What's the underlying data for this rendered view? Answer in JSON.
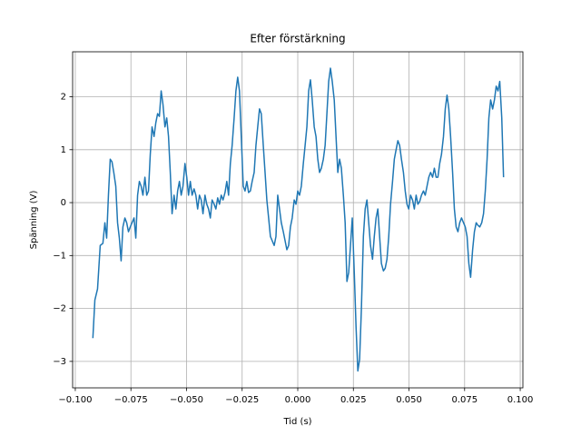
{
  "chart_data": {
    "type": "line",
    "title": "Efter förstärkning",
    "xlabel": "Tid (s)",
    "ylabel": "Spänning (V)",
    "color": "#1f77b4",
    "grid": true,
    "xlim": [
      -0.1012,
      0.1012
    ],
    "ylim": [
      -3.5,
      2.85
    ],
    "xticks": [
      {
        "value": -0.1,
        "label": "−0.100"
      },
      {
        "value": -0.075,
        "label": "−0.075"
      },
      {
        "value": -0.05,
        "label": "−0.050"
      },
      {
        "value": -0.025,
        "label": "−0.025"
      },
      {
        "value": 0,
        "label": "0.000"
      },
      {
        "value": 0.025,
        "label": "0.025"
      },
      {
        "value": 0.05,
        "label": "0.050"
      },
      {
        "value": 0.075,
        "label": "0.075"
      },
      {
        "value": 0.1,
        "label": "0.100"
      }
    ],
    "yticks": [
      {
        "value": -3,
        "label": "−3"
      },
      {
        "value": -2,
        "label": "−2"
      },
      {
        "value": -1,
        "label": "−1"
      },
      0,
      1,
      2
    ],
    "x": [
      -0.0921,
      -0.0912,
      -0.09,
      -0.0888,
      -0.0876,
      -0.0867,
      -0.0859,
      -0.0851,
      -0.0843,
      -0.0835,
      -0.0827,
      -0.0818,
      -0.081,
      -0.0802,
      -0.0794,
      -0.0786,
      -0.0777,
      -0.0769,
      -0.0761,
      -0.0753,
      -0.0745,
      -0.0736,
      -0.0728,
      -0.072,
      -0.0712,
      -0.0704,
      -0.0696,
      -0.0687,
      -0.0679,
      -0.0671,
      -0.0663,
      -0.0655,
      -0.0646,
      -0.0638,
      -0.063,
      -0.0622,
      -0.0614,
      -0.0606,
      -0.0597,
      -0.0589,
      -0.0581,
      -0.0573,
      -0.0565,
      -0.0556,
      -0.0548,
      -0.054,
      -0.0532,
      -0.0524,
      -0.0516,
      -0.0507,
      -0.0499,
      -0.0491,
      -0.0483,
      -0.0475,
      -0.0466,
      -0.0458,
      -0.045,
      -0.0442,
      -0.0434,
      -0.0426,
      -0.0417,
      -0.0409,
      -0.0401,
      -0.0393,
      -0.0385,
      -0.0376,
      -0.0368,
      -0.036,
      -0.0352,
      -0.0344,
      -0.0336,
      -0.0327,
      -0.0319,
      -0.0311,
      -0.0303,
      -0.0295,
      -0.0286,
      -0.0278,
      -0.027,
      -0.0262,
      -0.0254,
      -0.0245,
      -0.0237,
      -0.0229,
      -0.0221,
      -0.0213,
      -0.0205,
      -0.0196,
      -0.0188,
      -0.018,
      -0.0172,
      -0.0164,
      -0.0155,
      -0.0147,
      -0.0139,
      -0.0131,
      -0.0123,
      -0.0115,
      -0.0106,
      -0.0098,
      -0.009,
      -0.0082,
      -0.0074,
      -0.0065,
      -0.0057,
      -0.0049,
      -0.0041,
      -0.0033,
      -0.0025,
      -0.0016,
      -0.0008,
      0.0,
      0.0008,
      0.0016,
      0.0025,
      0.0033,
      0.0041,
      0.0049,
      0.0057,
      0.0065,
      0.0074,
      0.0082,
      0.009,
      0.0098,
      0.0106,
      0.0115,
      0.0123,
      0.0131,
      0.0139,
      0.0147,
      0.0155,
      0.0164,
      0.0172,
      0.018,
      0.0188,
      0.0196,
      0.0205,
      0.0213,
      0.0221,
      0.0229,
      0.0237,
      0.0245,
      0.0254,
      0.0262,
      0.027,
      0.0278,
      0.0286,
      0.0295,
      0.0303,
      0.0311,
      0.0319,
      0.0327,
      0.0336,
      0.0344,
      0.0352,
      0.036,
      0.0368,
      0.0376,
      0.0385,
      0.0393,
      0.0401,
      0.0409,
      0.0417,
      0.0426,
      0.0434,
      0.0442,
      0.045,
      0.0458,
      0.0466,
      0.0475,
      0.0483,
      0.0491,
      0.0499,
      0.0507,
      0.0516,
      0.0524,
      0.0532,
      0.054,
      0.0548,
      0.0556,
      0.0565,
      0.0573,
      0.0581,
      0.0589,
      0.0597,
      0.0606,
      0.0614,
      0.0622,
      0.063,
      0.0638,
      0.0646,
      0.0655,
      0.0663,
      0.0671,
      0.0679,
      0.0687,
      0.0696,
      0.0704,
      0.0712,
      0.072,
      0.0728,
      0.0736,
      0.0745,
      0.0753,
      0.0761,
      0.0769,
      0.0777,
      0.0786,
      0.0794,
      0.0802,
      0.081,
      0.0818,
      0.0827,
      0.0835,
      0.0843,
      0.0851,
      0.0859,
      0.0867,
      0.0876,
      0.0884,
      0.0892,
      0.09,
      0.0908,
      0.0917,
      0.0925
    ],
    "values": [
      -2.56,
      -1.84,
      -1.63,
      -0.81,
      -0.77,
      -0.38,
      -0.67,
      0.14,
      0.82,
      0.77,
      0.57,
      0.31,
      -0.38,
      -0.67,
      -1.1,
      -0.46,
      -0.29,
      -0.38,
      -0.55,
      -0.46,
      -0.38,
      -0.29,
      -0.67,
      0.14,
      0.4,
      0.31,
      0.14,
      0.48,
      0.14,
      0.22,
      0.91,
      1.43,
      1.25,
      1.51,
      1.68,
      1.63,
      2.11,
      1.86,
      1.43,
      1.6,
      1.25,
      0.57,
      -0.21,
      0.14,
      -0.12,
      0.22,
      0.4,
      0.14,
      0.31,
      0.74,
      0.48,
      0.14,
      0.4,
      0.14,
      0.26,
      0.14,
      -0.12,
      0.14,
      0.05,
      -0.21,
      0.14,
      -0.03,
      -0.12,
      -0.29,
      0.05,
      -0.03,
      -0.12,
      0.09,
      -0.03,
      0.14,
      0.05,
      0.19,
      0.4,
      0.14,
      0.74,
      1.08,
      1.6,
      2.11,
      2.37,
      2.11,
      1.25,
      0.31,
      0.22,
      0.4,
      0.19,
      0.22,
      0.4,
      0.57,
      1.08,
      1.43,
      1.77,
      1.68,
      1.08,
      0.57,
      0.05,
      -0.29,
      -0.64,
      -0.72,
      -0.81,
      -0.64,
      0.14,
      -0.12,
      -0.38,
      -0.55,
      -0.72,
      -0.89,
      -0.81,
      -0.46,
      -0.29,
      0.05,
      -0.03,
      0.22,
      0.14,
      0.31,
      0.74,
      1.08,
      1.43,
      2.11,
      2.32,
      1.94,
      1.43,
      1.25,
      0.82,
      0.57,
      0.65,
      0.82,
      1.08,
      1.68,
      2.29,
      2.54,
      2.29,
      1.94,
      1.25,
      0.57,
      0.82,
      0.65,
      0.14,
      -0.38,
      -1.49,
      -1.32,
      -0.81,
      -0.29,
      -1.32,
      -2.35,
      -3.18,
      -2.96,
      -2.01,
      -0.64,
      -0.12,
      0.05,
      -0.38,
      -0.81,
      -1.07,
      -0.64,
      -0.29,
      -0.12,
      -0.64,
      -1.15,
      -1.29,
      -1.24,
      -1.07,
      -0.64,
      -0.03,
      0.4,
      0.82,
      1.0,
      1.17,
      1.08,
      0.82,
      0.57,
      0.22,
      -0.03,
      -0.12,
      0.14,
      0.05,
      -0.12,
      0.14,
      -0.03,
      0.02,
      0.14,
      0.22,
      0.14,
      0.31,
      0.48,
      0.57,
      0.48,
      0.65,
      0.48,
      0.48,
      0.74,
      0.91,
      1.25,
      1.77,
      2.03,
      1.77,
      1.25,
      0.57,
      -0.12,
      -0.46,
      -0.55,
      -0.38,
      -0.29,
      -0.38,
      -0.46,
      -0.64,
      -1.15,
      -1.41,
      -0.89,
      -0.55,
      -0.38,
      -0.43,
      -0.46,
      -0.38,
      -0.21,
      0.22,
      0.82,
      1.6,
      1.94,
      1.77,
      1.94,
      2.2,
      2.11,
      2.29,
      1.6,
      0.48
    ]
  }
}
